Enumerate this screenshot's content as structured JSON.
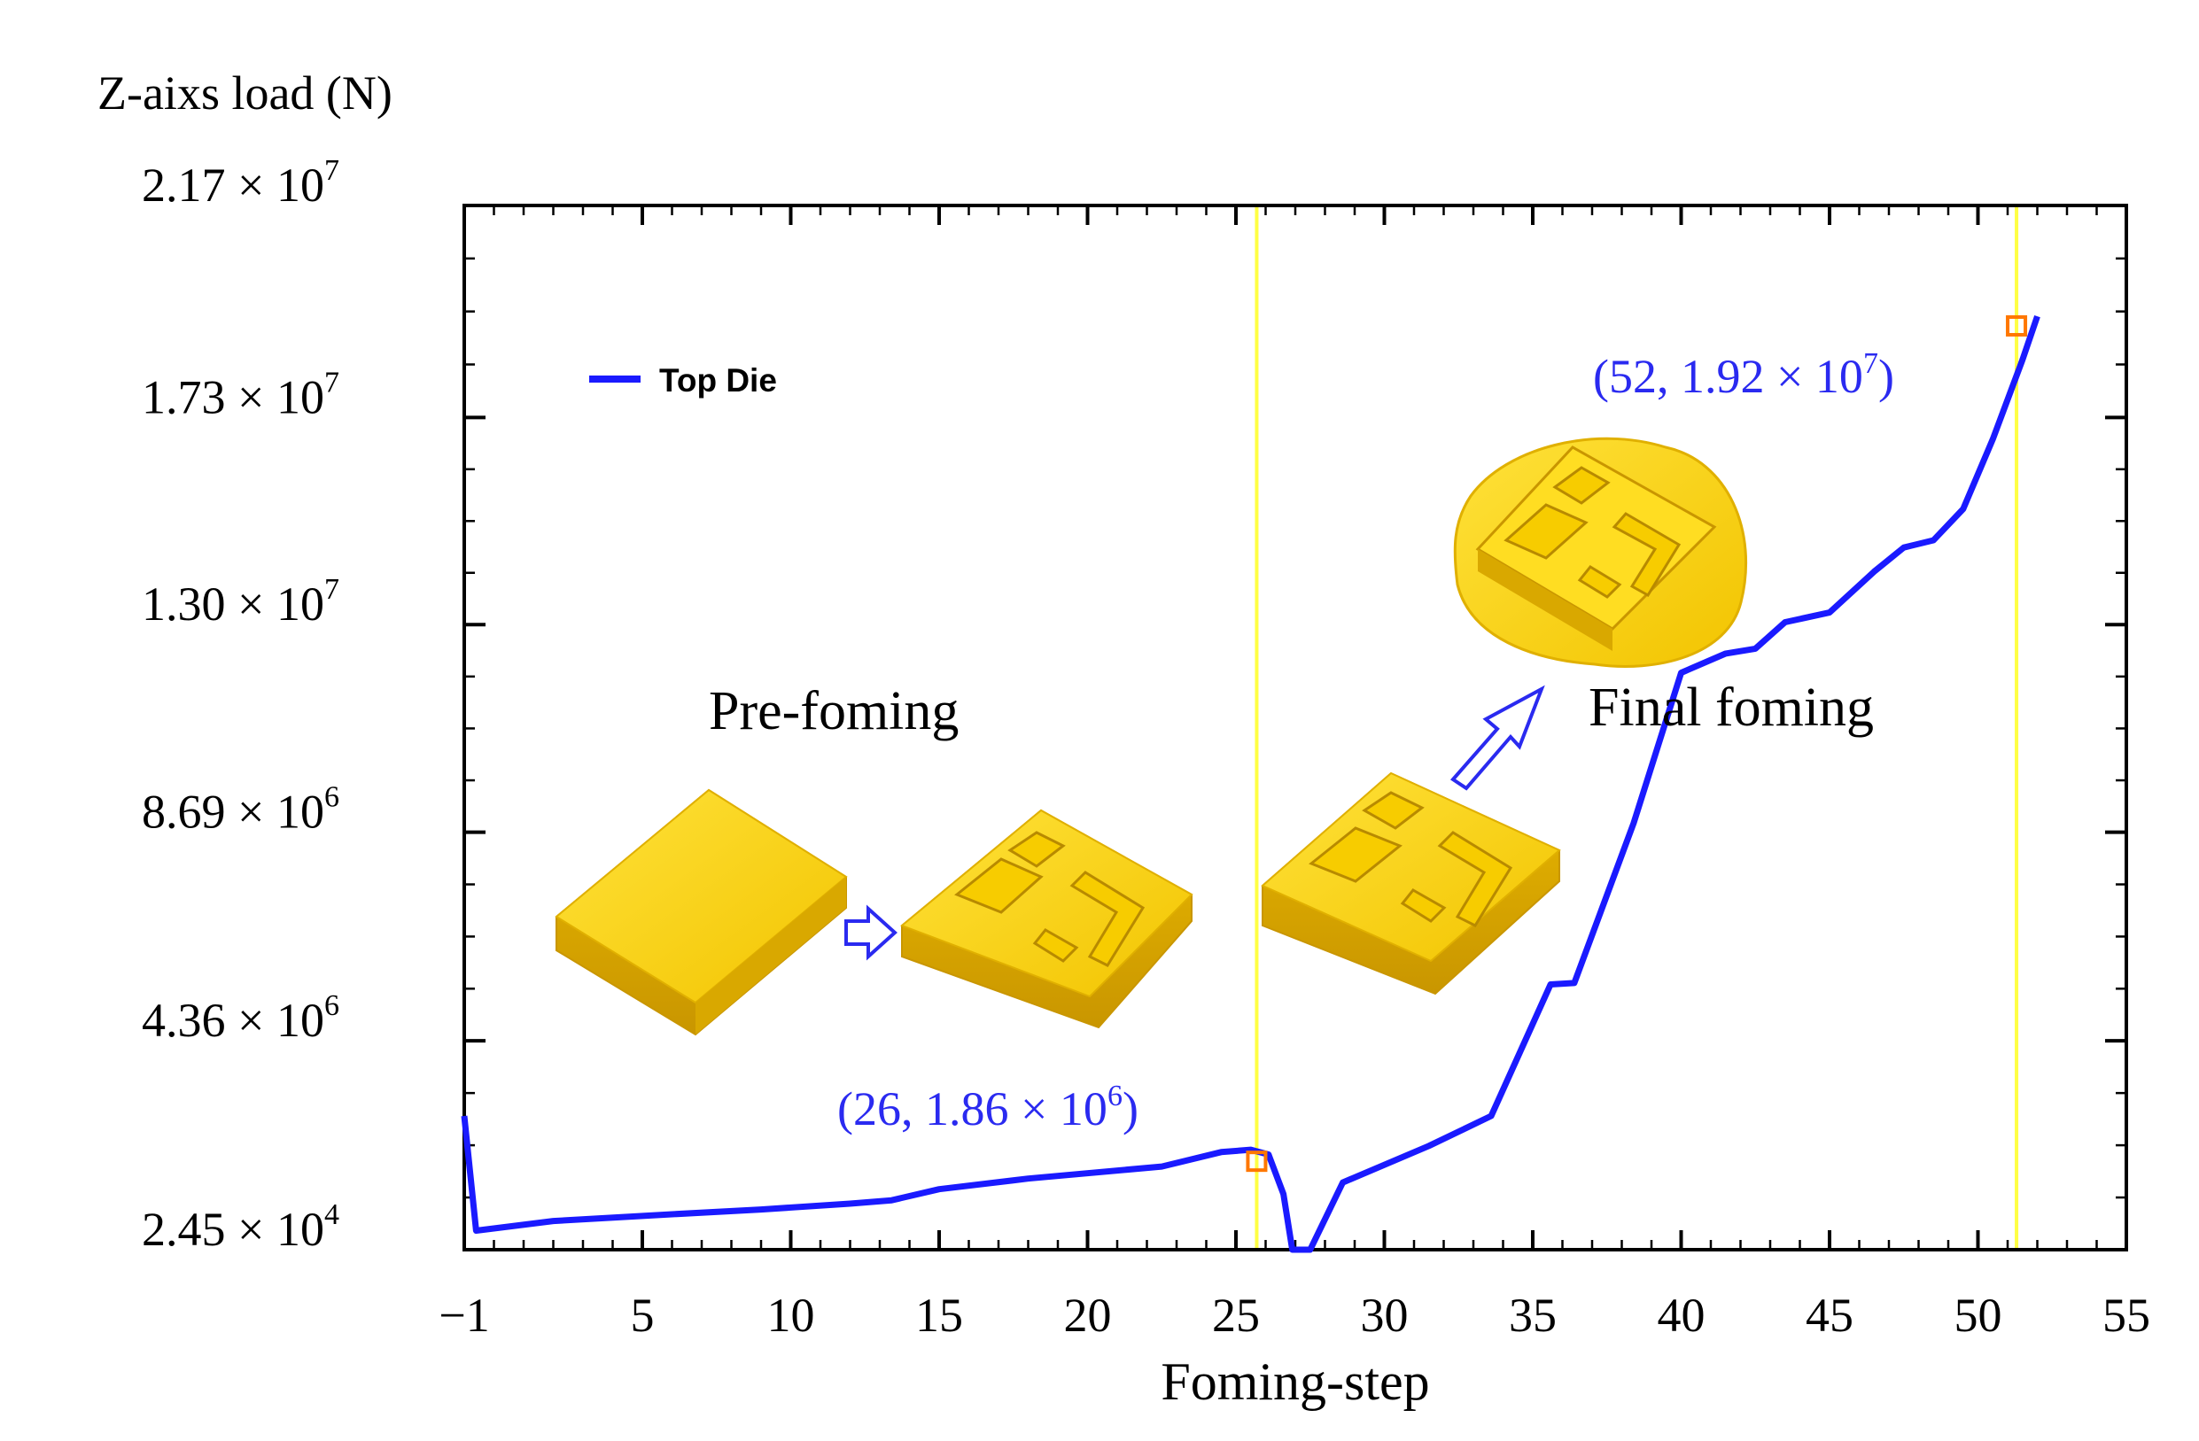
{
  "chart_data": {
    "type": "line",
    "xlabel": "Foming-step",
    "ylabel": "Z-aixs load (N)",
    "xlim": [
      -1,
      55
    ],
    "x_ticks": [
      -1,
      5,
      10,
      15,
      20,
      25,
      30,
      35,
      40,
      45,
      50,
      55
    ],
    "x_tick_labels": [
      "−1",
      "5",
      "10",
      "15",
      "20",
      "25",
      "30",
      "35",
      "40",
      "45",
      "50",
      "55"
    ],
    "ylim": [
      24500,
      21700000
    ],
    "y_ticks": [
      {
        "value": 24500,
        "mantissa": "2.45 × 10",
        "exponent": "4"
      },
      {
        "value": 4360000,
        "mantissa": "4.36 × 10",
        "exponent": "6"
      },
      {
        "value": 8690000,
        "mantissa": "8.69 × 10",
        "exponent": "6"
      },
      {
        "value": 13000000,
        "mantissa": "1.30 × 10",
        "exponent": "7"
      },
      {
        "value": 17300000,
        "mantissa": "1.73 × 10",
        "exponent": "7"
      },
      {
        "value": 21700000,
        "mantissa": "2.17 × 10",
        "exponent": "7"
      }
    ],
    "legend": {
      "position": "top-left",
      "label": "Top Die"
    },
    "grid": false,
    "series": [
      {
        "name": "Top Die",
        "color": "#1a1aff",
        "x": [
          -1,
          -0.6,
          2,
          6,
          9,
          12,
          13.4,
          15,
          18,
          22.5,
          24.5,
          25.5,
          26.1,
          26.6,
          26.9,
          27.2,
          27.5,
          28.6,
          31.5,
          33.6,
          35.6,
          36.4,
          38.4,
          40,
          41.5,
          42.5,
          43.5,
          45,
          46.5,
          47.5,
          48.5,
          49.5,
          50.5,
          51.5,
          52
        ],
        "y": [
          2800000,
          420000,
          620000,
          760000,
          860000,
          980000,
          1050000,
          1280000,
          1500000,
          1750000,
          2050000,
          2100000,
          2000000,
          1180000,
          24500,
          24500,
          24500,
          1420000,
          2180000,
          2800000,
          5530000,
          5560000,
          8880000,
          12000000,
          12400000,
          12500000,
          13050000,
          13250000,
          14100000,
          14600000,
          14750000,
          15400000,
          16850000,
          18500000,
          19400000
        ]
      }
    ],
    "vertical_lines": [
      {
        "x": 25.7,
        "color": "#ffff44"
      },
      {
        "x": 51.3,
        "color": "#ffff44"
      }
    ],
    "markers": [
      {
        "x": 25.7,
        "y": 1860000,
        "color": "#ff7700"
      },
      {
        "x": 51.3,
        "y": 19200000,
        "color": "#ff7700"
      }
    ],
    "annotations": [
      {
        "text": "(26, 1.86 × 10",
        "sup": "6",
        "tail": ")",
        "color": "#2a2af0"
      },
      {
        "text": "(52, 1.92 × 10",
        "sup": "7",
        "tail": ")",
        "color": "#2a2af0"
      },
      {
        "text": "Pre-foming",
        "color": "#000000"
      },
      {
        "text": "Final foming",
        "color": "#000000"
      }
    ],
    "illustrations": [
      "initial-billet",
      "pre-formed-part",
      "pre-formed-part",
      "final-formed-part-with-flash"
    ],
    "illustration_color": "#ffd400"
  }
}
